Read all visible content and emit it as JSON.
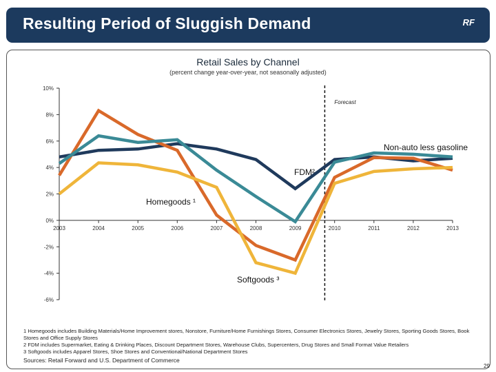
{
  "header": {
    "title": "Resulting Period of Sluggish Demand",
    "logo": "RF"
  },
  "chart_data": {
    "type": "line",
    "title": "Retail Sales by Channel",
    "subtitle": "(percent change year-over-year, not seasonally adjusted)",
    "x": [
      "2003",
      "2004",
      "2005",
      "2006",
      "2007",
      "2008",
      "2009",
      "2010",
      "2011",
      "2012",
      "2013"
    ],
    "ylim": [
      -6,
      10
    ],
    "yticks": [
      "10%",
      "8%",
      "6%",
      "4%",
      "2%",
      "0%",
      "-2%",
      "-4%",
      "-6%"
    ],
    "ytick_values": [
      10,
      8,
      6,
      4,
      2,
      0,
      -2,
      -4,
      -6
    ],
    "forecast_label": "Forecast",
    "forecast_from": "2010",
    "grid": false,
    "series": [
      {
        "name": "Non-auto less gasoline",
        "color": "#1f3a5c",
        "values": [
          4.8,
          5.3,
          5.4,
          5.8,
          5.4,
          4.6,
          2.4,
          4.6,
          4.8,
          4.5,
          4.7
        ]
      },
      {
        "name": "Homegoods ¹",
        "color": "#d9692a",
        "values": [
          3.4,
          8.3,
          6.5,
          5.3,
          0.4,
          -1.9,
          -3.0,
          3.25,
          4.75,
          4.7,
          3.8
        ]
      },
      {
        "name": "FDM²",
        "color": "#3a8a96",
        "values": [
          4.3,
          6.4,
          5.9,
          6.1,
          3.8,
          1.8,
          -0.1,
          4.4,
          5.1,
          5.0,
          4.8
        ]
      },
      {
        "name": "Softgoods ³",
        "color": "#efb53a",
        "values": [
          2.0,
          4.35,
          4.2,
          3.65,
          2.5,
          -3.2,
          -4.0,
          2.8,
          3.7,
          3.9,
          4.0
        ]
      }
    ]
  },
  "footnotes": [
    "1 Homegoods includes Building Materials/Home Improvement stores, Nonstore, Furniture/Home Furnishings Stores, Consumer Electronics Stores, Jewelry Stores, Sporting Goods Stores, Book Stores and Office Supply Stores",
    "2 FDM includes Supermarket, Eating & Drinking Places, Discount Department Stores, Warehouse Clubs, Supercenters, Drug Stores and Small Format Value Retailers",
    "3 Softgoods includes Apparel Stores, Shoe Stores and Conventional/National Department Stores"
  ],
  "sources": "Sources:  Retail Forward and U.S. Department of Commerce",
  "page_number": "29"
}
